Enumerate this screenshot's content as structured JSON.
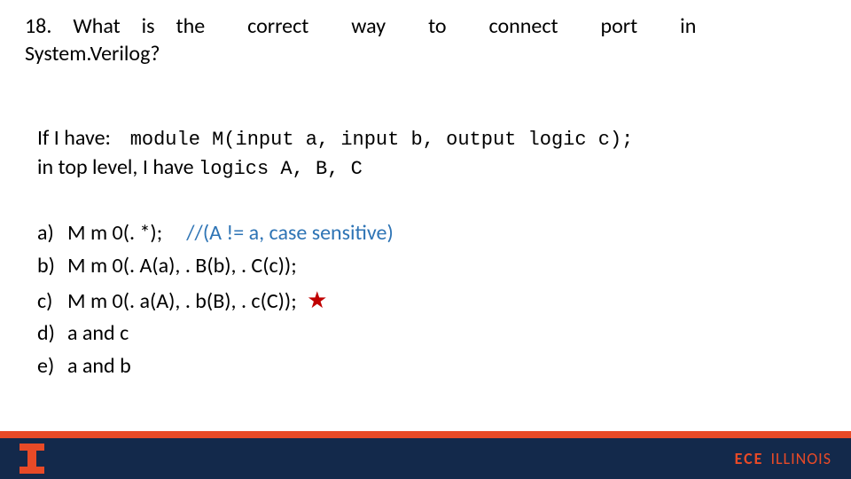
{
  "question": {
    "line1": "18. What is the  correct  way  to  connect  port  in",
    "line2": "System.Verilog?"
  },
  "stem": {
    "have_prefix": "If I have:",
    "module_code": "module M(input a, input b, output logic c);",
    "toplevel_prefix": "in top level, I have ",
    "toplevel_code": "logics A, B, C"
  },
  "choices": [
    {
      "letter": "a)",
      "text": "M m 0(. *);",
      "comment": "//(A != a, case sensitive)",
      "star": false
    },
    {
      "letter": "b)",
      "text": "M m 0(. A(a), . B(b), . C(c));",
      "comment": "",
      "star": false
    },
    {
      "letter": "c)",
      "text": "M m 0(. a(A), . b(B), . c(C));",
      "comment": "",
      "star": true
    },
    {
      "letter": "d)",
      "text": "a and c",
      "comment": "",
      "star": false
    },
    {
      "letter": "e)",
      "text": "a and b",
      "comment": "",
      "star": false
    }
  ],
  "footer": {
    "ece_bold": "ECE",
    "ece_rest": "ILLINOIS"
  },
  "colors": {
    "orange": "#e84a27",
    "navy": "#13294b",
    "link_blue": "#2e74b5",
    "star_red": "#c00000",
    "text": "#000000",
    "bg": "#ffffff"
  }
}
